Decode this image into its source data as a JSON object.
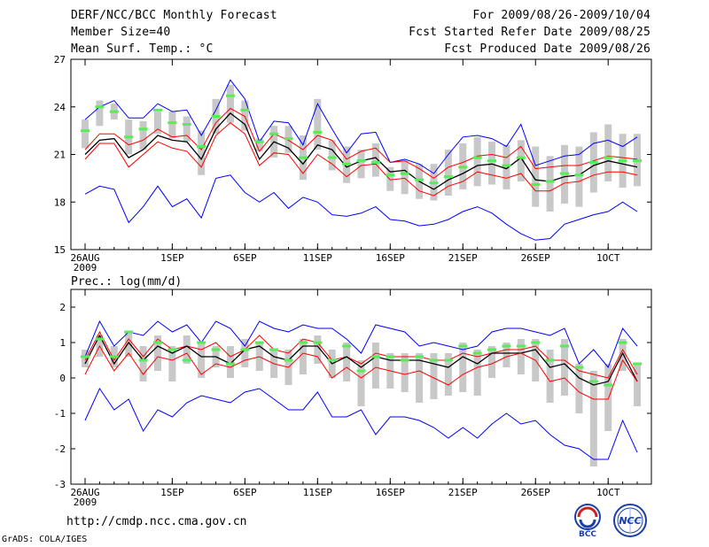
{
  "header": {
    "title": "DERF/NCC/BCC Monthly Forecast",
    "member_size": "Member Size=40",
    "variable": "Mean Surf. Temp.: °C",
    "period": "For 2009/08/26-2009/10/04",
    "refer_date": "Fcst Started Refer Date 2009/08/25",
    "produced_date": "Fcst Produced Date 2009/08/26"
  },
  "footer": {
    "url": "http://cmdp.ncc.cma.gov.cn",
    "credit": "GrADS: COLA/IGES",
    "logo_bcc": "BCC",
    "logo_ncc": "NCC"
  },
  "colors": {
    "envelope": "#0000ff",
    "spread": "#ff0000",
    "mean": "#000000",
    "box": "#c8c8c8",
    "marker": "#55ee55"
  },
  "chart_data": [
    {
      "type": "line",
      "title": "Mean Surf. Temp.: °C",
      "ylim": [
        15,
        27
      ],
      "yticks": [
        15,
        18,
        21,
        24,
        27
      ],
      "xlim": [
        0,
        38
      ],
      "x_tick_positions": [
        0,
        6,
        11,
        16,
        21,
        26,
        31,
        36
      ],
      "x_tick_labels": [
        "26AUG",
        "1SEP",
        "6SEP",
        "11SEP",
        "16SEP",
        "21SEP",
        "26SEP",
        "1OCT"
      ],
      "x_sub_label": "2009",
      "series": [
        {
          "name": "max",
          "values": [
            23.2,
            24.0,
            24.4,
            23.3,
            23.3,
            24.2,
            23.7,
            23.8,
            22.2,
            23.8,
            25.7,
            24.5,
            21.8,
            23.1,
            23.0,
            21.6,
            24.2,
            22.6,
            21.1,
            22.3,
            22.4,
            20.5,
            20.7,
            20.4,
            19.8,
            21.0,
            22.1,
            22.2,
            22.0,
            21.5,
            22.9,
            20.3,
            20.6,
            20.9,
            21.0,
            21.7,
            21.9,
            21.5,
            22.1
          ]
        },
        {
          "name": "upper",
          "values": [
            21.3,
            22.3,
            22.3,
            21.6,
            21.9,
            22.6,
            22.1,
            22.2,
            21.3,
            23.0,
            23.9,
            23.4,
            21.2,
            22.3,
            21.9,
            21.3,
            22.2,
            21.9,
            20.7,
            21.2,
            21.4,
            20.5,
            20.6,
            20.1,
            19.5,
            20.2,
            20.5,
            20.9,
            21.0,
            20.8,
            21.5,
            20.1,
            20.2,
            20.3,
            20.3,
            20.6,
            20.9,
            20.8,
            20.7
          ]
        },
        {
          "name": "mean",
          "values": [
            21.0,
            21.9,
            22.0,
            20.8,
            21.3,
            22.2,
            21.9,
            21.8,
            20.7,
            22.6,
            23.6,
            22.9,
            20.7,
            21.8,
            21.4,
            20.4,
            21.6,
            21.3,
            20.2,
            20.6,
            20.8,
            19.9,
            20.0,
            19.3,
            18.8,
            19.4,
            19.8,
            20.3,
            20.4,
            20.1,
            20.8,
            19.4,
            19.3,
            19.6,
            19.7,
            20.3,
            20.6,
            20.4,
            20.2
          ]
        },
        {
          "name": "lower",
          "values": [
            20.7,
            21.7,
            21.7,
            20.2,
            21.0,
            21.8,
            21.4,
            21.2,
            20.2,
            22.2,
            23.0,
            22.3,
            20.3,
            21.1,
            21.0,
            19.8,
            21.0,
            20.4,
            19.6,
            20.3,
            20.4,
            19.4,
            19.5,
            18.7,
            18.4,
            19.0,
            19.3,
            19.9,
            19.7,
            19.5,
            19.8,
            18.7,
            18.7,
            19.2,
            19.3,
            19.7,
            19.9,
            19.9,
            19.7
          ]
        },
        {
          "name": "min",
          "values": [
            18.5,
            19.0,
            18.8,
            16.7,
            17.7,
            19.0,
            17.7,
            18.2,
            17.0,
            19.5,
            19.7,
            18.6,
            18.0,
            18.6,
            17.6,
            18.3,
            18.0,
            17.2,
            17.1,
            17.3,
            17.7,
            16.9,
            16.8,
            16.5,
            16.6,
            16.9,
            17.4,
            17.7,
            17.3,
            16.6,
            16.0,
            15.6,
            15.7,
            16.6,
            16.9,
            17.2,
            17.4,
            18.0,
            17.4
          ]
        }
      ],
      "box_low": [
        21.4,
        22.8,
        23.2,
        21.0,
        21.3,
        22.3,
        22.0,
        21.8,
        19.7,
        22.3,
        23.0,
        22.5,
        21.2,
        20.8,
        21.1,
        19.4,
        21.3,
        20.0,
        19.2,
        19.5,
        19.6,
        18.7,
        18.5,
        18.2,
        18.1,
        18.4,
        18.8,
        19.0,
        19.1,
        18.8,
        19.3,
        17.7,
        17.4,
        17.9,
        17.7,
        18.6,
        19.3,
        18.9,
        19.0
      ],
      "box_high": [
        23.2,
        24.4,
        24.2,
        23.2,
        23.1,
        23.7,
        23.7,
        23.4,
        22.5,
        24.5,
        25.4,
        24.4,
        22.0,
        22.8,
        22.8,
        22.2,
        24.5,
        21.9,
        21.5,
        21.3,
        21.7,
        20.2,
        20.6,
        20.4,
        20.4,
        21.3,
        21.7,
        22.1,
        21.8,
        21.6,
        21.9,
        21.5,
        20.9,
        21.6,
        21.5,
        22.4,
        22.9,
        22.3,
        22.3
      ],
      "markers": [
        22.5,
        24.0,
        23.7,
        22.1,
        22.6,
        23.8,
        23.0,
        22.9,
        21.5,
        23.4,
        24.7,
        23.8,
        21.8,
        22.3,
        22.0,
        20.8,
        22.4,
        20.8,
        20.4,
        20.6,
        20.5,
        19.7,
        19.8,
        19.4,
        19.2,
        19.6,
        20.2,
        20.8,
        20.6,
        20.3,
        20.8,
        19.1,
        19.3,
        19.8,
        19.7,
        20.5,
        20.8,
        20.6,
        20.6
      ]
    },
    {
      "type": "line",
      "title": "Prec.: log(mm/d)",
      "ylim": [
        -3,
        2.5
      ],
      "yticks": [
        -3,
        -2,
        -1,
        0,
        1,
        2
      ],
      "xlim": [
        0,
        38
      ],
      "x_tick_positions": [
        0,
        6,
        11,
        16,
        21,
        26,
        31,
        36
      ],
      "x_tick_labels": [
        "26AUG",
        "1SEP",
        "6SEP",
        "11SEP",
        "16SEP",
        "21SEP",
        "26SEP",
        "1OCT"
      ],
      "x_sub_label": "2009",
      "series": [
        {
          "name": "max",
          "values": [
            0.6,
            1.6,
            0.9,
            1.3,
            1.2,
            1.6,
            1.3,
            1.5,
            1.0,
            1.6,
            1.4,
            0.9,
            1.6,
            1.4,
            1.3,
            1.5,
            1.4,
            1.4,
            1.1,
            0.7,
            1.5,
            1.4,
            1.3,
            0.9,
            1.0,
            0.9,
            0.8,
            0.9,
            1.3,
            1.4,
            1.4,
            1.3,
            1.2,
            1.4,
            0.4,
            0.8,
            0.3,
            1.4,
            0.9
          ]
        },
        {
          "name": "upper",
          "values": [
            0.5,
            1.3,
            0.5,
            1.1,
            0.6,
            1.1,
            0.8,
            0.9,
            0.8,
            1.0,
            0.6,
            0.8,
            1.2,
            0.8,
            0.7,
            1.1,
            1.0,
            0.5,
            0.6,
            0.4,
            0.7,
            0.6,
            0.6,
            0.6,
            0.5,
            0.5,
            0.7,
            0.6,
            0.7,
            0.8,
            0.8,
            0.9,
            0.5,
            0.5,
            0.2,
            0.1,
            0.0,
            0.8,
            0.1
          ]
        },
        {
          "name": "mean",
          "values": [
            0.4,
            1.2,
            0.4,
            1.0,
            0.5,
            0.9,
            0.7,
            0.9,
            0.6,
            0.6,
            0.4,
            0.8,
            0.9,
            0.6,
            0.5,
            0.9,
            0.9,
            0.4,
            0.6,
            0.3,
            0.6,
            0.5,
            0.5,
            0.5,
            0.4,
            0.3,
            0.6,
            0.4,
            0.7,
            0.7,
            0.7,
            0.8,
            0.3,
            0.4,
            0.0,
            -0.2,
            -0.1,
            0.7,
            -0.1
          ]
        },
        {
          "name": "lower",
          "values": [
            0.1,
            0.9,
            0.2,
            0.7,
            0.1,
            0.6,
            0.5,
            0.7,
            0.1,
            0.4,
            0.3,
            0.5,
            0.6,
            0.4,
            0.3,
            0.7,
            0.6,
            0.0,
            0.3,
            0.0,
            0.3,
            0.2,
            0.1,
            0.2,
            0.0,
            -0.2,
            0.1,
            0.3,
            0.4,
            0.6,
            0.7,
            0.5,
            -0.1,
            0.0,
            -0.4,
            -0.6,
            -0.6,
            0.5,
            -0.1
          ]
        },
        {
          "name": "min",
          "values": [
            -1.2,
            -0.3,
            -0.9,
            -0.6,
            -1.5,
            -0.9,
            -1.1,
            -0.7,
            -0.5,
            -0.6,
            -0.7,
            -0.4,
            -0.3,
            -0.6,
            -0.9,
            -0.9,
            -0.4,
            -1.1,
            -1.1,
            -0.9,
            -1.6,
            -1.1,
            -1.1,
            -1.2,
            -1.4,
            -1.7,
            -1.4,
            -1.7,
            -1.3,
            -1.0,
            -1.3,
            -1.2,
            -1.6,
            -1.9,
            -2.0,
            -2.3,
            -2.3,
            -1.2,
            -2.1
          ]
        }
      ],
      "box_low": [
        0.3,
        0.6,
        0.3,
        0.6,
        -0.1,
        0.2,
        -0.1,
        0.4,
        0.0,
        0.3,
        0.0,
        0.3,
        0.2,
        0.0,
        -0.2,
        0.1,
        0.4,
        0.0,
        -0.1,
        -0.8,
        -0.3,
        -0.3,
        -0.4,
        -0.7,
        -0.6,
        -0.5,
        -0.4,
        -0.5,
        0.0,
        0.3,
        0.1,
        -0.1,
        -0.7,
        -0.5,
        -1.0,
        -2.5,
        -1.5,
        0.2,
        -0.8
      ],
      "box_high": [
        0.8,
        1.2,
        0.9,
        1.3,
        0.9,
        1.2,
        0.9,
        1.2,
        1.0,
        0.9,
        0.9,
        1.1,
        1.0,
        0.8,
        0.8,
        1.1,
        1.2,
        0.8,
        1.0,
        0.5,
        1.0,
        0.7,
        0.7,
        0.7,
        0.7,
        0.7,
        1.0,
        0.8,
        0.9,
        1.0,
        1.1,
        1.1,
        0.8,
        1.1,
        0.4,
        0.2,
        0.4,
        1.1,
        0.4
      ],
      "markers": [
        0.6,
        1.1,
        0.6,
        1.3,
        0.5,
        1.0,
        0.8,
        0.5,
        1.0,
        0.8,
        0.4,
        0.8,
        1.0,
        0.8,
        0.5,
        1.0,
        1.0,
        0.5,
        0.9,
        0.2,
        0.6,
        0.6,
        0.5,
        0.6,
        0.5,
        0.5,
        0.9,
        0.7,
        0.8,
        0.9,
        0.9,
        1.0,
        0.5,
        0.9,
        0.3,
        -0.1,
        -0.2,
        1.0,
        0.4
      ]
    }
  ]
}
